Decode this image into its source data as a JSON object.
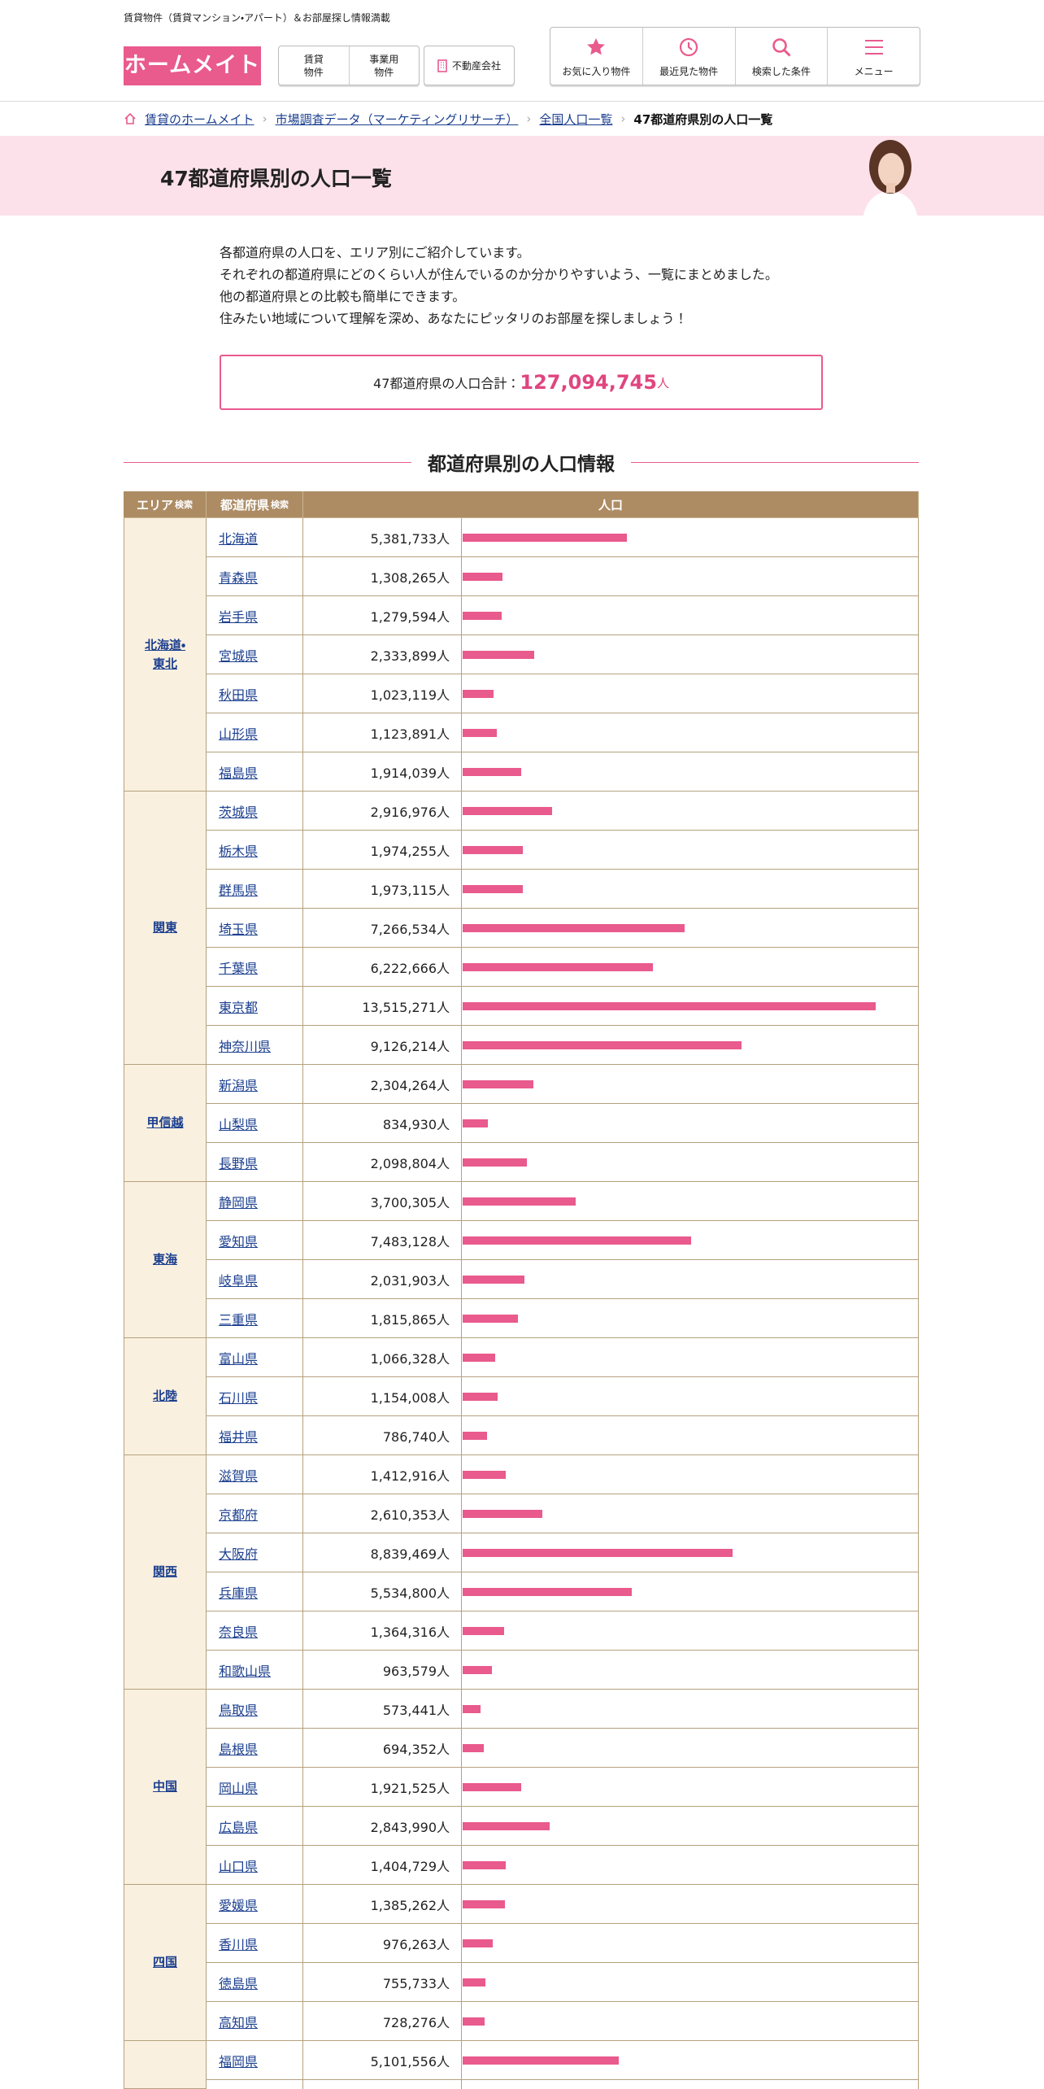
{
  "header": {
    "tagline": "賃貸物件（賃貸マンション・アパート）＆お部屋探し情報満載",
    "logo": "ホームメイト",
    "nav_left": [
      [
        "賃貸",
        "物件"
      ],
      [
        "事業用",
        "物件"
      ]
    ],
    "agency_button": "不動産会社",
    "nav_right": [
      "お気に入り物件",
      "最近見た物件",
      "検索した条件",
      "メニュー"
    ]
  },
  "breadcrumb": [
    "賃貸のホームメイト",
    "市場調査データ（マーケティングリサーチ）",
    "全国人口一覧",
    "47都道府県別の人口一覧"
  ],
  "page_title": "47都道府県別の人口一覧",
  "intro": [
    "各都道府県の人口を、エリア別にご紹介しています。",
    "それぞれの都道府県にどのくらい人が住んでいるのか分かりやすいよう、一覧にまとめました。",
    "他の都道府県との比較も簡単にできます。",
    "住みたい地域について理解を深め、あなたにピッタリのお部屋を探しましょう！"
  ],
  "total": {
    "label": "47都道府県の人口合計：",
    "value": "127,094,745",
    "unit": "人"
  },
  "section_heading": "都道府県別の人口情報",
  "table": {
    "headers": {
      "area": {
        "text": "エリア",
        "suffix": "検索"
      },
      "prefecture": {
        "text": "都道府県",
        "suffix": "検索"
      },
      "population": "人口"
    },
    "groups": [
      {
        "area": [
          "北海道・",
          "東北"
        ],
        "rows": [
          {
            "prefecture": "北海道",
            "population": 5381733,
            "population_label": "5,381,733人"
          },
          {
            "prefecture": "青森県",
            "population": 1308265,
            "population_label": "1,308,265人"
          },
          {
            "prefecture": "岩手県",
            "population": 1279594,
            "population_label": "1,279,594人"
          },
          {
            "prefecture": "宮城県",
            "population": 2333899,
            "population_label": "2,333,899人"
          },
          {
            "prefecture": "秋田県",
            "population": 1023119,
            "population_label": "1,023,119人"
          },
          {
            "prefecture": "山形県",
            "population": 1123891,
            "population_label": "1,123,891人"
          },
          {
            "prefecture": "福島県",
            "population": 1914039,
            "population_label": "1,914,039人"
          }
        ]
      },
      {
        "area": [
          "関東"
        ],
        "rows": [
          {
            "prefecture": "茨城県",
            "population": 2916976,
            "population_label": "2,916,976人"
          },
          {
            "prefecture": "栃木県",
            "population": 1974255,
            "population_label": "1,974,255人"
          },
          {
            "prefecture": "群馬県",
            "population": 1973115,
            "population_label": "1,973,115人"
          },
          {
            "prefecture": "埼玉県",
            "population": 7266534,
            "population_label": "7,266,534人"
          },
          {
            "prefecture": "千葉県",
            "population": 6222666,
            "population_label": "6,222,666人"
          },
          {
            "prefecture": "東京都",
            "population": 13515271,
            "population_label": "13,515,271人"
          },
          {
            "prefecture": "神奈川県",
            "population": 9126214,
            "population_label": "9,126,214人"
          }
        ]
      },
      {
        "area": [
          "甲信越"
        ],
        "rows": [
          {
            "prefecture": "新潟県",
            "population": 2304264,
            "population_label": "2,304,264人"
          },
          {
            "prefecture": "山梨県",
            "population": 834930,
            "population_label": "834,930人"
          },
          {
            "prefecture": "長野県",
            "population": 2098804,
            "population_label": "2,098,804人"
          }
        ]
      },
      {
        "area": [
          "東海"
        ],
        "rows": [
          {
            "prefecture": "静岡県",
            "population": 3700305,
            "population_label": "3,700,305人"
          },
          {
            "prefecture": "愛知県",
            "population": 7483128,
            "population_label": "7,483,128人"
          },
          {
            "prefecture": "岐阜県",
            "population": 2031903,
            "population_label": "2,031,903人"
          },
          {
            "prefecture": "三重県",
            "population": 1815865,
            "population_label": "1,815,865人"
          }
        ]
      },
      {
        "area": [
          "北陸"
        ],
        "rows": [
          {
            "prefecture": "富山県",
            "population": 1066328,
            "population_label": "1,066,328人"
          },
          {
            "prefecture": "石川県",
            "population": 1154008,
            "population_label": "1,154,008人"
          },
          {
            "prefecture": "福井県",
            "population": 786740,
            "population_label": "786,740人"
          }
        ]
      },
      {
        "area": [
          "関西"
        ],
        "rows": [
          {
            "prefecture": "滋賀県",
            "population": 1412916,
            "population_label": "1,412,916人"
          },
          {
            "prefecture": "京都府",
            "population": 2610353,
            "population_label": "2,610,353人"
          },
          {
            "prefecture": "大阪府",
            "population": 8839469,
            "population_label": "8,839,469人"
          },
          {
            "prefecture": "兵庫県",
            "population": 5534800,
            "population_label": "5,534,800人"
          },
          {
            "prefecture": "奈良県",
            "population": 1364316,
            "population_label": "1,364,316人"
          },
          {
            "prefecture": "和歌山県",
            "population": 963579,
            "population_label": "963,579人"
          }
        ]
      },
      {
        "area": [
          "中国"
        ],
        "rows": [
          {
            "prefecture": "鳥取県",
            "population": 573441,
            "population_label": "573,441人"
          },
          {
            "prefecture": "島根県",
            "population": 694352,
            "population_label": "694,352人"
          },
          {
            "prefecture": "岡山県",
            "population": 1921525,
            "population_label": "1,921,525人"
          },
          {
            "prefecture": "広島県",
            "population": 2843990,
            "population_label": "2,843,990人"
          },
          {
            "prefecture": "山口県",
            "population": 1404729,
            "population_label": "1,404,729人"
          }
        ]
      },
      {
        "area": [
          "四国"
        ],
        "rows": [
          {
            "prefecture": "愛媛県",
            "population": 1385262,
            "population_label": "1,385,262人"
          },
          {
            "prefecture": "香川県",
            "population": 976263,
            "population_label": "976,263人"
          },
          {
            "prefecture": "徳島県",
            "population": 755733,
            "population_label": "755,733人"
          },
          {
            "prefecture": "高知県",
            "population": 728276,
            "population_label": "728,276人"
          }
        ]
      },
      {
        "rows": [
          {
            "prefecture": "福岡県",
            "population": 5101556,
            "population_label": "5,101,556人"
          }
        ]
      }
    ]
  }
}
